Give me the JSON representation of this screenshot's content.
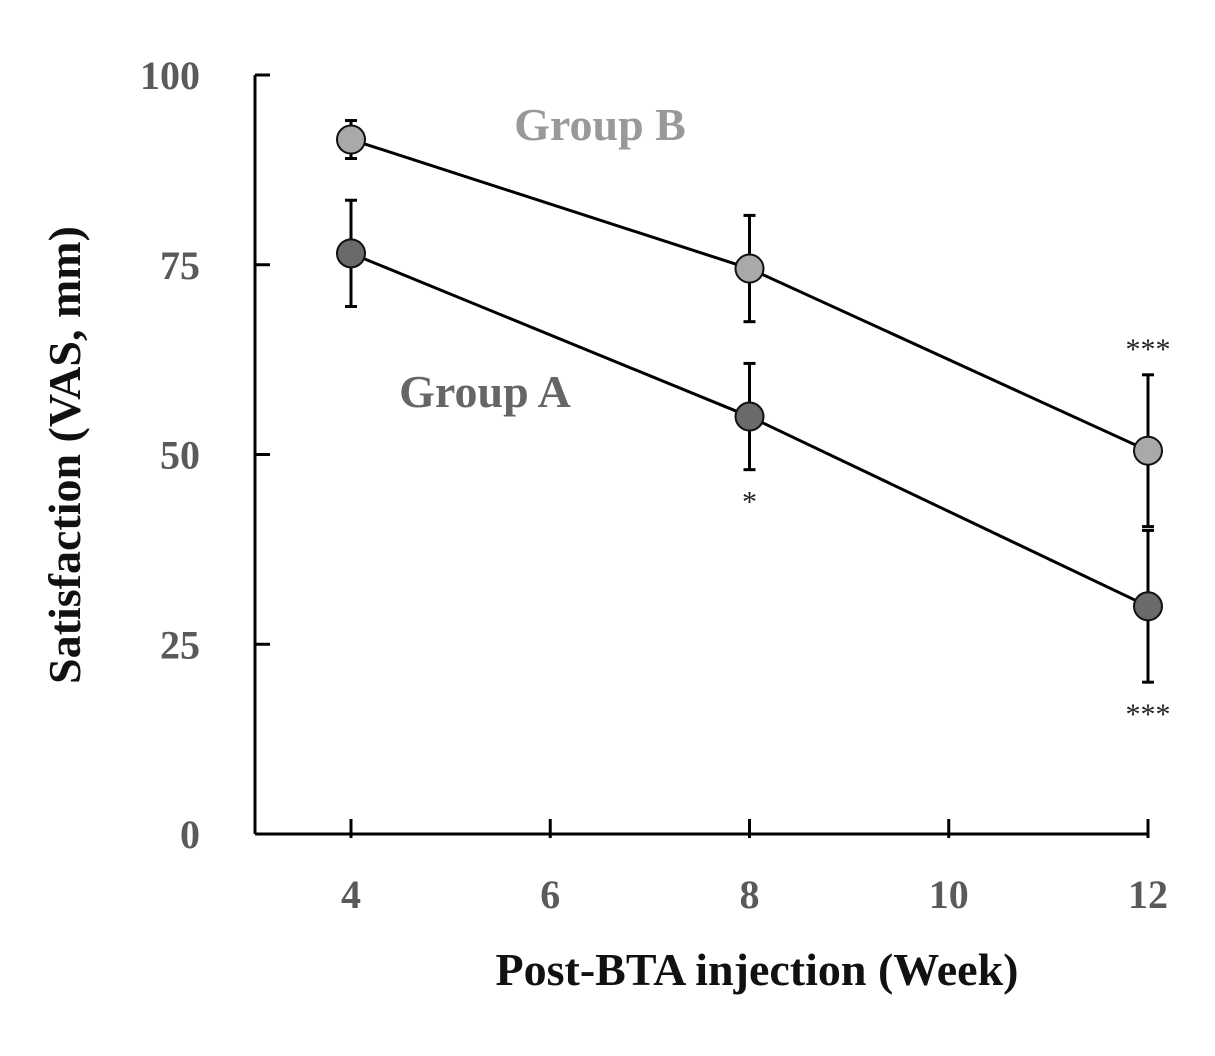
{
  "chart_data": {
    "type": "line",
    "xlabel": "Post-BTA injection (Week)",
    "ylabel": "Satisfaction (VAS, mm)",
    "xlim": [
      4,
      12
    ],
    "ylim": [
      0,
      100
    ],
    "x_ticks": [
      4,
      6,
      8,
      10,
      12
    ],
    "y_ticks": [
      0,
      25,
      50,
      75,
      100
    ],
    "x_tick_labels": [
      "4",
      "6",
      "8",
      "10",
      "12"
    ],
    "y_tick_labels": [
      "0",
      "25",
      "50",
      "75",
      "100"
    ],
    "grid": false,
    "legend": "none",
    "x": [
      4,
      8,
      12
    ],
    "series": [
      {
        "name": "Group B",
        "values": [
          91.5,
          74.5,
          50.5
        ],
        "error": [
          2.5,
          7.0,
          10.0
        ],
        "color": "#a9a9a9",
        "label_color": "#999999",
        "significance": [
          "",
          "",
          "***"
        ]
      },
      {
        "name": "Group A",
        "values": [
          76.5,
          55.0,
          30.0
        ],
        "error": [
          7.0,
          7.0,
          10.0
        ],
        "color": "#6a6a6a",
        "label_color": "#666666",
        "significance": [
          "",
          "*",
          "***"
        ]
      }
    ]
  }
}
